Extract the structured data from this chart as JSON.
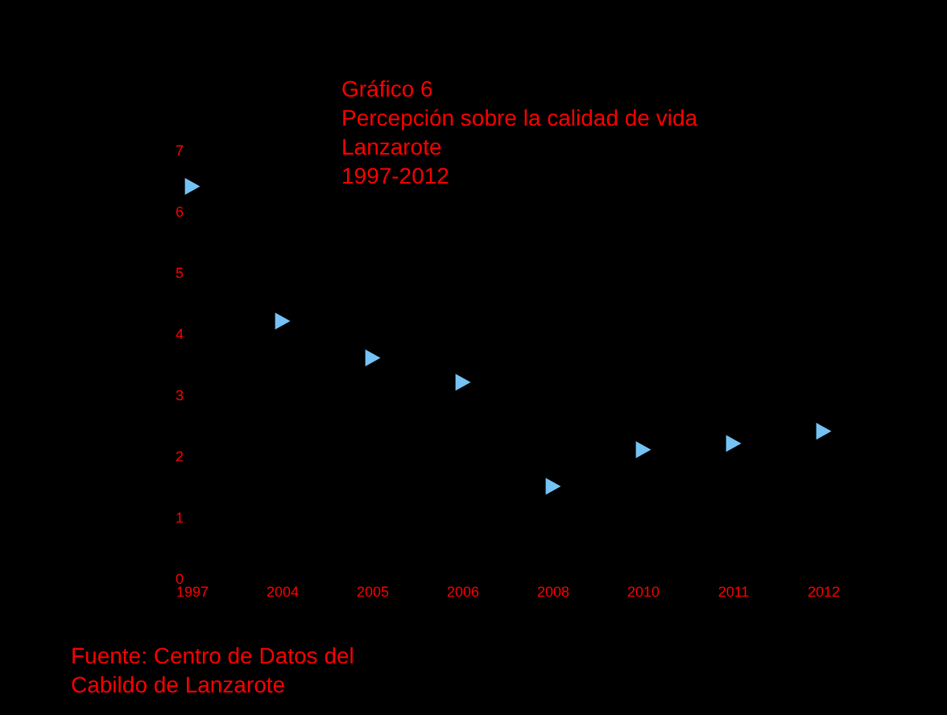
{
  "chart_data": {
    "type": "scatter",
    "title": "Gráfico 6\nPercepción sobre la calidad de vida\nLanzarote\n1997-2012",
    "categories": [
      "1997",
      "2004",
      "2005",
      "2006",
      "2008",
      "2010",
      "2011",
      "2012"
    ],
    "series": [
      {
        "color": "#75c3f5",
        "values": [
          6.4,
          4.2,
          3.6,
          3.2,
          1.5,
          2.1,
          2.2,
          2.4
        ]
      }
    ],
    "ylim": [
      0,
      7
    ],
    "yticks": [
      0,
      1,
      2,
      3,
      4,
      5,
      6,
      7
    ],
    "grid": false,
    "legend": false,
    "marker": "triangle",
    "annotations": [
      "Fuente: Centro de Datos del\nCabildo de Lanzarote"
    ]
  }
}
